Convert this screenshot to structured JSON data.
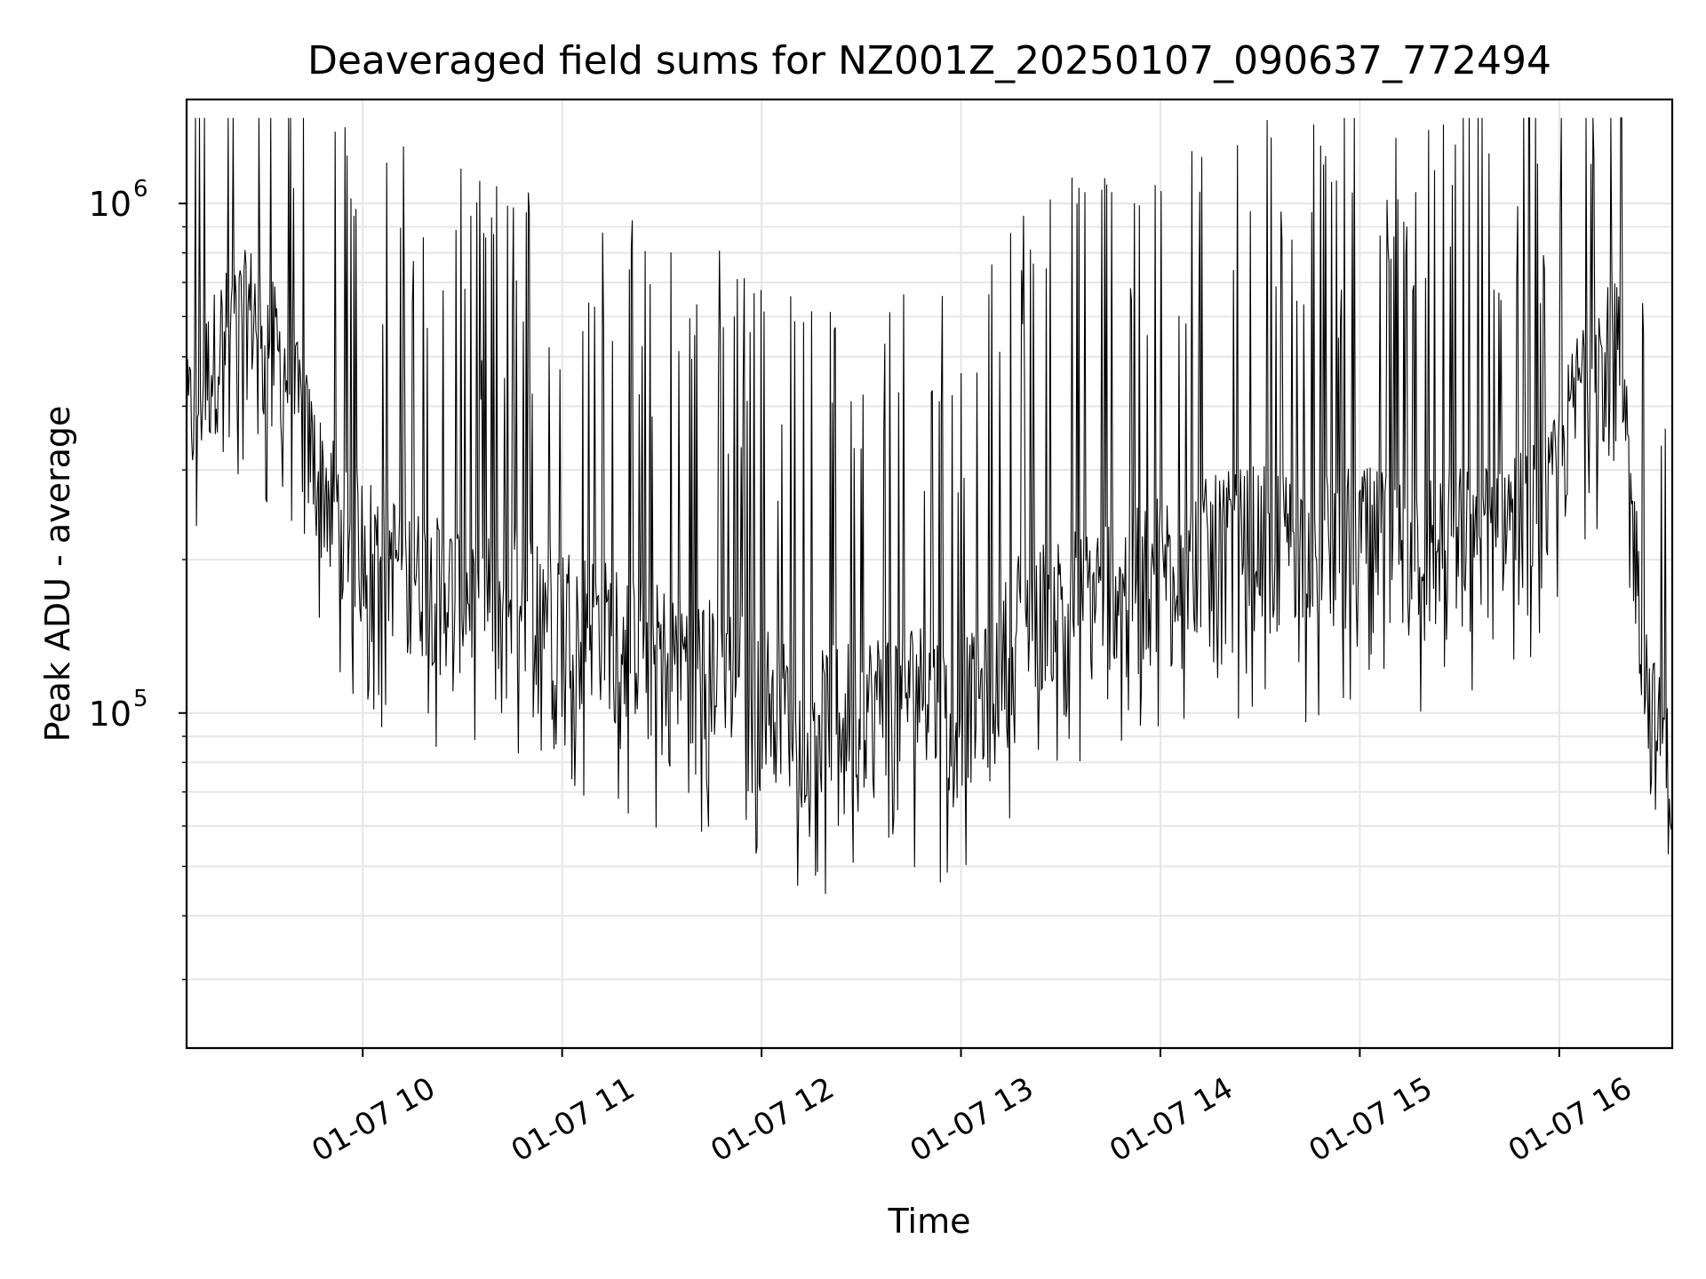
{
  "chart_data": {
    "type": "line",
    "title": "Deaveraged field sums for NZ001Z_20250107_090637_772494",
    "xlabel": "Time",
    "ylabel": "Peak ADU - average",
    "x_tick_labels": [
      "01-07 10",
      "01-07 11",
      "01-07 12",
      "01-07 13",
      "01-07 14",
      "01-07 15",
      "01-07 16"
    ],
    "y_tick_labels": [
      {
        "base": "10",
        "exp": "5"
      },
      {
        "base": "10",
        "exp": "6"
      }
    ],
    "x_range": [
      "2025-01-07 09:07",
      "2025-01-07 16:34"
    ],
    "y_scale": "log",
    "ylim": [
      22000,
      1600000
    ],
    "grid": true,
    "line_color": "#000000",
    "grid_color": "#e6e6e6",
    "series": [
      {
        "x": [
          "2025-01-07 09:07",
          "2025-01-07 09:17",
          "2025-01-07 09:27",
          "2025-01-07 09:37",
          "2025-01-07 09:47",
          "2025-01-07 09:57",
          "2025-01-07 10:07",
          "2025-01-07 10:17",
          "2025-01-07 10:27",
          "2025-01-07 10:37",
          "2025-01-07 10:47",
          "2025-01-07 10:57",
          "2025-01-07 11:07",
          "2025-01-07 11:17",
          "2025-01-07 11:27",
          "2025-01-07 11:37",
          "2025-01-07 11:47",
          "2025-01-07 11:57",
          "2025-01-07 12:07",
          "2025-01-07 12:17",
          "2025-01-07 12:27",
          "2025-01-07 12:37",
          "2025-01-07 12:47",
          "2025-01-07 12:57",
          "2025-01-07 13:07",
          "2025-01-07 13:17",
          "2025-01-07 13:27",
          "2025-01-07 13:37",
          "2025-01-07 13:47",
          "2025-01-07 13:57",
          "2025-01-07 14:07",
          "2025-01-07 14:17",
          "2025-01-07 14:27",
          "2025-01-07 14:37",
          "2025-01-07 14:47",
          "2025-01-07 14:57",
          "2025-01-07 15:07",
          "2025-01-07 15:17",
          "2025-01-07 15:27",
          "2025-01-07 15:37",
          "2025-01-07 15:47",
          "2025-01-07 15:57",
          "2025-01-07 16:07",
          "2025-01-07 16:17",
          "2025-01-07 16:27",
          "2025-01-07 16:34"
        ],
        "y": [
          350000,
          520000,
          600000,
          450000,
          280000,
          220000,
          200000,
          180000,
          170000,
          160000,
          170000,
          160000,
          150000,
          140000,
          130000,
          125000,
          120000,
          115000,
          100000,
          95000,
          100000,
          105000,
          110000,
          100000,
          105000,
          150000,
          160000,
          170000,
          180000,
          190000,
          200000,
          210000,
          220000,
          215000,
          210000,
          220000,
          215000,
          210000,
          220000,
          230000,
          240000,
          250000,
          450000,
          550000,
          100000,
          70000
        ]
      }
    ]
  }
}
